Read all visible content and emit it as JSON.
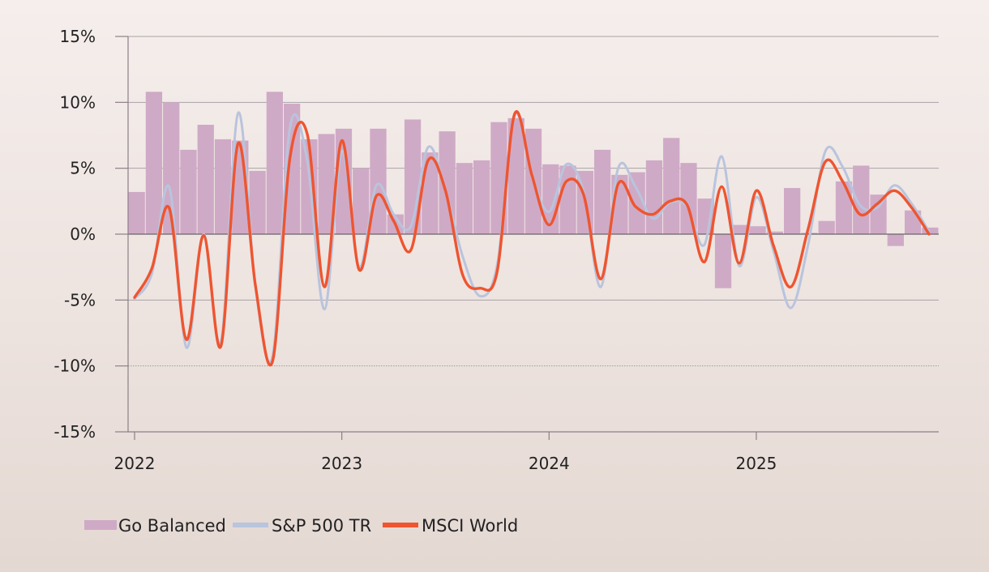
{
  "chart_data": {
    "type": "bar+line",
    "title": "",
    "xlabel": "",
    "ylabel": "",
    "ylim": [
      -15,
      15
    ],
    "yticks": [
      15,
      10,
      5,
      0,
      -5,
      -10,
      -15
    ],
    "ytick_labels": [
      "15%",
      "10%",
      "5%",
      "0%",
      "-5%",
      "-10%",
      "-15%"
    ],
    "xlim": [
      "2022-01",
      "2025-11"
    ],
    "xticks": [
      "2022",
      "2023",
      "2024",
      "2025"
    ],
    "grid": "horizontal",
    "legend_position": "bottom-left",
    "months": [
      "2022-01",
      "2022-02",
      "2022-03",
      "2022-04",
      "2022-05",
      "2022-06",
      "2022-07",
      "2022-08",
      "2022-09",
      "2022-10",
      "2022-11",
      "2022-12",
      "2023-01",
      "2023-02",
      "2023-03",
      "2023-04",
      "2023-05",
      "2023-06",
      "2023-07",
      "2023-08",
      "2023-09",
      "2023-10",
      "2023-11",
      "2023-12",
      "2024-01",
      "2024-02",
      "2024-03",
      "2024-04",
      "2024-05",
      "2024-06",
      "2024-07",
      "2024-08",
      "2024-09",
      "2024-10",
      "2024-11",
      "2024-12",
      "2025-01",
      "2025-02",
      "2025-03",
      "2025-04",
      "2025-05",
      "2025-06",
      "2025-07",
      "2025-08",
      "2025-09",
      "2025-10",
      "2025-11"
    ],
    "series": [
      {
        "name": "Go Balanced",
        "kind": "bar",
        "color": "#cfaac6",
        "values": [
          3.2,
          10.8,
          10.0,
          6.4,
          8.3,
          7.2,
          7.1,
          4.8,
          10.8,
          9.9,
          7.2,
          7.6,
          8.0,
          5.0,
          8.0,
          1.5,
          8.7,
          6.2,
          7.8,
          5.4,
          5.6,
          8.5,
          8.8,
          8.0,
          5.3,
          5.2,
          4.8,
          6.4,
          4.5,
          4.7,
          5.6,
          7.3,
          5.4,
          2.7,
          -4.1,
          0.7,
          0.6,
          0.2,
          3.5,
          0.1,
          1.0,
          4.0,
          5.2,
          3.0,
          -0.9,
          1.8,
          0.5
        ]
      },
      {
        "name": "S&P 500 TR",
        "kind": "line",
        "color": "#b9c4dd",
        "values": [
          -4.9,
          -3.0,
          3.6,
          -8.6,
          0.0,
          -8.2,
          9.2,
          -4.0,
          -9.2,
          8.1,
          5.6,
          -5.7,
          6.3,
          -2.5,
          3.7,
          1.5,
          0.6,
          6.6,
          3.3,
          -1.7,
          -4.7,
          -2.3,
          9.0,
          4.5,
          1.7,
          5.3,
          3.2,
          -4.0,
          5.0,
          3.6,
          1.2,
          2.4,
          2.1,
          -0.8,
          5.9,
          -2.4,
          2.8,
          -1.3,
          -5.6,
          -0.8,
          6.3,
          5.1,
          2.2,
          2.0,
          3.7,
          2.3,
          0.2
        ]
      },
      {
        "name": "MSCI World",
        "kind": "line",
        "color": "#ee5530",
        "values": [
          -4.8,
          -2.6,
          2.0,
          -8.0,
          -0.1,
          -8.5,
          6.9,
          -3.9,
          -9.6,
          5.8,
          7.6,
          -4.0,
          7.1,
          -2.7,
          2.9,
          1.0,
          -1.2,
          5.6,
          3.3,
          -3.1,
          -4.1,
          -2.8,
          9.1,
          4.5,
          0.7,
          4.0,
          3.0,
          -3.4,
          3.8,
          2.1,
          1.5,
          2.5,
          2.2,
          -2.1,
          3.6,
          -2.2,
          3.3,
          -0.9,
          -4.0,
          0.4,
          5.5,
          4.0,
          1.5,
          2.3,
          3.3,
          2.0,
          0.0
        ]
      }
    ]
  }
}
